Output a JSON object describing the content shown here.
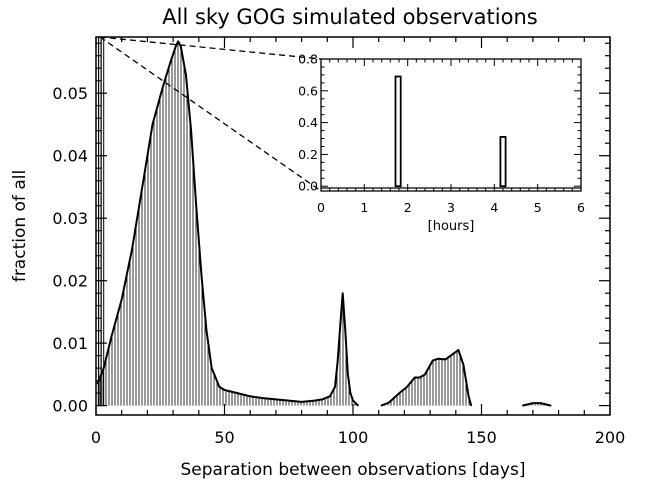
{
  "title": "All sky GOG simulated observations",
  "chart_data": [
    {
      "type": "area",
      "title": "All sky GOG simulated observations",
      "xlabel": "Separation between observations [days]",
      "ylabel": "fraction of all",
      "xlim": [
        0,
        200
      ],
      "ylim": [
        -0.0015,
        0.059
      ],
      "xticks": [
        0,
        50,
        100,
        150,
        200
      ],
      "xtick_labels": [
        "0",
        "50",
        "100",
        "150",
        "200"
      ],
      "yticks": [
        0.0,
        0.01,
        0.02,
        0.03,
        0.04,
        0.05
      ],
      "ytick_labels": [
        "0.00",
        "0.01",
        "0.02",
        "0.03",
        "0.04",
        "0.05"
      ],
      "grid": false,
      "style": "vertical-hatched fill under curve",
      "series": [
        {
          "x": [
            0.5,
            1,
            3,
            6,
            10,
            14,
            18,
            22,
            26,
            29,
            31,
            32,
            33,
            35,
            37,
            39,
            41,
            43,
            45,
            48,
            50,
            55,
            60,
            65,
            70,
            75,
            80,
            85,
            88,
            91,
            93,
            94,
            95,
            96,
            97,
            98,
            99,
            100,
            102
          ],
          "y": [
            0.0035,
            0.004,
            0.006,
            0.011,
            0.017,
            0.025,
            0.035,
            0.045,
            0.051,
            0.055,
            0.0575,
            0.0583,
            0.0575,
            0.053,
            0.044,
            0.032,
            0.021,
            0.012,
            0.006,
            0.003,
            0.0025,
            0.002,
            0.0015,
            0.0012,
            0.001,
            0.0008,
            0.0006,
            0.0008,
            0.001,
            0.0015,
            0.003,
            0.007,
            0.0125,
            0.018,
            0.012,
            0.005,
            0.002,
            0.0008,
            0.0
          ]
        },
        {
          "x": [
            111,
            114,
            118,
            121,
            124,
            126,
            128,
            131,
            133,
            136,
            139,
            141,
            143,
            145,
            146
          ],
          "y": [
            0.0,
            0.0005,
            0.002,
            0.003,
            0.0045,
            0.0045,
            0.005,
            0.0072,
            0.0075,
            0.0074,
            0.0083,
            0.0089,
            0.0065,
            0.0015,
            0.0
          ]
        },
        {
          "x": [
            166,
            170,
            173,
            177
          ],
          "y": [
            0.0,
            0.0004,
            0.0004,
            0.0
          ]
        }
      ],
      "bars_near_zero": [
        {
          "x": 0.5,
          "y": 0.059
        },
        {
          "x": 1.5,
          "y": 0.059
        },
        {
          "x": 2.5,
          "y": 0.059
        }
      ]
    },
    {
      "type": "bar",
      "inset": true,
      "xlabel": "[hours]",
      "ylabel": "",
      "xlim": [
        0,
        6
      ],
      "ylim": [
        -0.03,
        0.8
      ],
      "xticks": [
        0,
        1,
        2,
        3,
        4,
        5,
        6
      ],
      "xtick_labels": [
        "0",
        "1",
        "2",
        "3",
        "4",
        "5",
        "6"
      ],
      "yticks": [
        0.0,
        0.2,
        0.4,
        0.6,
        0.8
      ],
      "ytick_labels": [
        "0.0",
        "0.2",
        "0.4",
        "0.6",
        "0.8"
      ],
      "bars": [
        {
          "x0": 1.72,
          "x1": 1.84,
          "value": 0.69
        },
        {
          "x0": 4.14,
          "x1": 4.26,
          "value": 0.31
        }
      ]
    }
  ]
}
